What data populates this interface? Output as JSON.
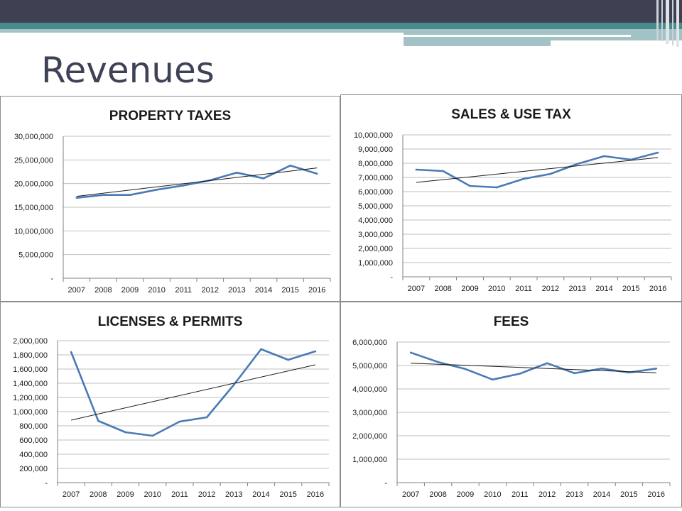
{
  "slide": {
    "title": "Revenues"
  },
  "theme": {
    "banner_dark": "#3f4152",
    "banner_teal": "#4a8a8c",
    "banner_light": "#a3c2c6",
    "series_color": "#4a7ab5",
    "trend_color": "#1a1a1a"
  },
  "chart_data": [
    {
      "type": "line",
      "title": "PROPERTY TAXES",
      "categories": [
        "2007",
        "2008",
        "2009",
        "2010",
        "2011",
        "2012",
        "2013",
        "2014",
        "2015",
        "2016"
      ],
      "values": [
        17000000,
        17600000,
        17600000,
        18700000,
        19600000,
        20700000,
        22300000,
        21100000,
        23800000,
        22100000
      ],
      "trendline": [
        17300000,
        23300000
      ],
      "ylim": [
        0,
        30000000
      ],
      "yticks": [
        0,
        5000000,
        10000000,
        15000000,
        20000000,
        25000000,
        30000000
      ],
      "ytick_labels": [
        "-",
        "5,000,000",
        "10,000,000",
        "15,000,000",
        "20,000,000",
        "25,000,000",
        "30,000,000"
      ],
      "grid": true
    },
    {
      "type": "line",
      "title": "SALES & USE TAX",
      "categories": [
        "2007",
        "2008",
        "2009",
        "2010",
        "2011",
        "2012",
        "2013",
        "2014",
        "2015",
        "2016"
      ],
      "values": [
        7550000,
        7450000,
        6400000,
        6300000,
        6900000,
        7250000,
        7950000,
        8500000,
        8250000,
        8750000
      ],
      "trendline": [
        6650000,
        8400000
      ],
      "ylim": [
        0,
        10000000
      ],
      "yticks": [
        0,
        1000000,
        2000000,
        3000000,
        4000000,
        5000000,
        6000000,
        7000000,
        8000000,
        9000000,
        10000000
      ],
      "ytick_labels": [
        "-",
        "1,000,000",
        "2,000,000",
        "3,000,000",
        "4,000,000",
        "5,000,000",
        "6,000,000",
        "7,000,000",
        "8,000,000",
        "9,000,000",
        "10,000,000"
      ],
      "grid": true
    },
    {
      "type": "line",
      "title": "LICENSES & PERMITS",
      "categories": [
        "2007",
        "2008",
        "2009",
        "2010",
        "2011",
        "2012",
        "2013",
        "2014",
        "2015",
        "2016"
      ],
      "values": [
        1840000,
        870000,
        710000,
        660000,
        860000,
        920000,
        1380000,
        1880000,
        1730000,
        1850000
      ],
      "trendline": [
        880000,
        1660000
      ],
      "ylim": [
        0,
        2000000
      ],
      "yticks": [
        0,
        200000,
        400000,
        600000,
        800000,
        1000000,
        1200000,
        1400000,
        1600000,
        1800000,
        2000000
      ],
      "ytick_labels": [
        "-",
        "200,000",
        "400,000",
        "600,000",
        "800,000",
        "1,000,000",
        "1,200,000",
        "1,400,000",
        "1,600,000",
        "1,800,000",
        "2,000,000"
      ],
      "grid": true
    },
    {
      "type": "line",
      "title": "FEES",
      "categories": [
        "2007",
        "2008",
        "2009",
        "2010",
        "2011",
        "2012",
        "2013",
        "2014",
        "2015",
        "2016"
      ],
      "values": [
        5550000,
        5150000,
        4850000,
        4400000,
        4650000,
        5100000,
        4670000,
        4870000,
        4700000,
        4870000
      ],
      "trendline": [
        5100000,
        4690000
      ],
      "ylim": [
        0,
        6000000
      ],
      "yticks": [
        0,
        1000000,
        2000000,
        3000000,
        4000000,
        5000000,
        6000000
      ],
      "ytick_labels": [
        "-",
        "1,000,000",
        "2,000,000",
        "3,000,000",
        "4,000,000",
        "5,000,000",
        "6,000,000"
      ],
      "grid": true
    }
  ]
}
